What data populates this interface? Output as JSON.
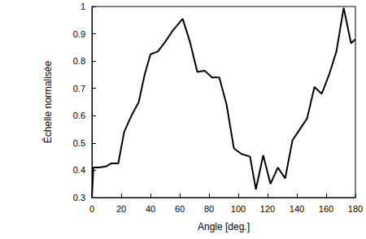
{
  "chart_data": {
    "type": "line",
    "x_label": "Angle [deg.]",
    "y_label": "Échelle normalisée",
    "x": [
      0,
      1,
      5,
      10,
      13,
      18,
      22,
      27,
      32,
      36,
      40,
      45,
      50,
      55,
      62,
      67,
      72,
      77,
      82,
      87,
      92,
      97,
      102,
      108,
      112,
      117,
      122,
      127,
      132,
      137,
      142,
      147,
      152,
      157,
      162,
      167,
      172,
      177,
      180
    ],
    "values": [
      0.3,
      0.41,
      0.41,
      0.415,
      0.425,
      0.425,
      0.54,
      0.6,
      0.65,
      0.75,
      0.825,
      0.835,
      0.87,
      0.91,
      0.955,
      0.87,
      0.76,
      0.765,
      0.74,
      0.74,
      0.64,
      0.48,
      0.46,
      0.45,
      0.33,
      0.455,
      0.35,
      0.41,
      0.37,
      0.51,
      0.55,
      0.59,
      0.705,
      0.68,
      0.75,
      0.835,
      0.995,
      0.865,
      0.88
    ],
    "color": "#000000",
    "xlim": [
      0,
      180
    ],
    "xticks": [
      0,
      20,
      40,
      60,
      80,
      100,
      120,
      140,
      160,
      180
    ],
    "ylim": [
      0.3,
      1
    ],
    "yticks": [
      0.3,
      0.4,
      0.5,
      0.6,
      0.7,
      0.8,
      0.9,
      1
    ],
    "grid": false
  }
}
